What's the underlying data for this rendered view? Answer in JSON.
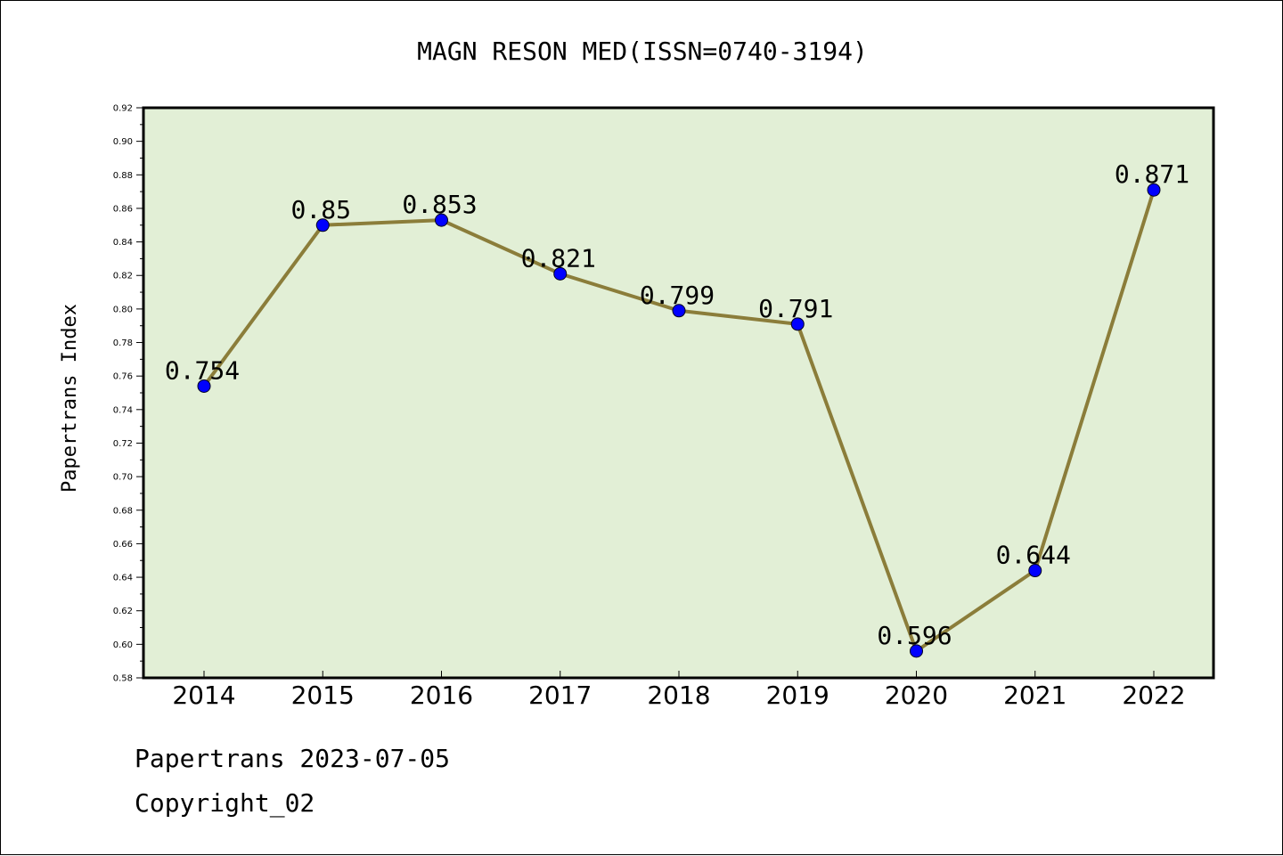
{
  "chart_data": {
    "type": "line",
    "title": "MAGN RESON MED(ISSN=0740-3194)",
    "xlabel": "",
    "ylabel": "Papertrans Index",
    "x": [
      "2014",
      "2015",
      "2016",
      "2017",
      "2018",
      "2019",
      "2020",
      "2021",
      "2022"
    ],
    "values": [
      0.754,
      0.85,
      0.853,
      0.821,
      0.799,
      0.791,
      0.596,
      0.644,
      0.871
    ],
    "data_labels": [
      "0.754",
      "0.85",
      "0.853",
      "0.821",
      "0.799",
      "0.791",
      "0.596",
      "0.644",
      "0.871"
    ],
    "ylim": [
      0.58,
      0.92
    ],
    "yticks": [
      "0.58",
      "0.60",
      "0.62",
      "0.64",
      "0.66",
      "0.68",
      "0.70",
      "0.72",
      "0.74",
      "0.76",
      "0.78",
      "0.80",
      "0.82",
      "0.84",
      "0.86",
      "0.88",
      "0.90",
      "0.92"
    ],
    "grid": false,
    "colors": {
      "plot_background": "#e2efd6",
      "line": "#8b7d3a",
      "marker": "#0000ff"
    }
  },
  "footer": {
    "line1": "Papertrans 2023-07-05",
    "line2": "Copyright_02"
  }
}
